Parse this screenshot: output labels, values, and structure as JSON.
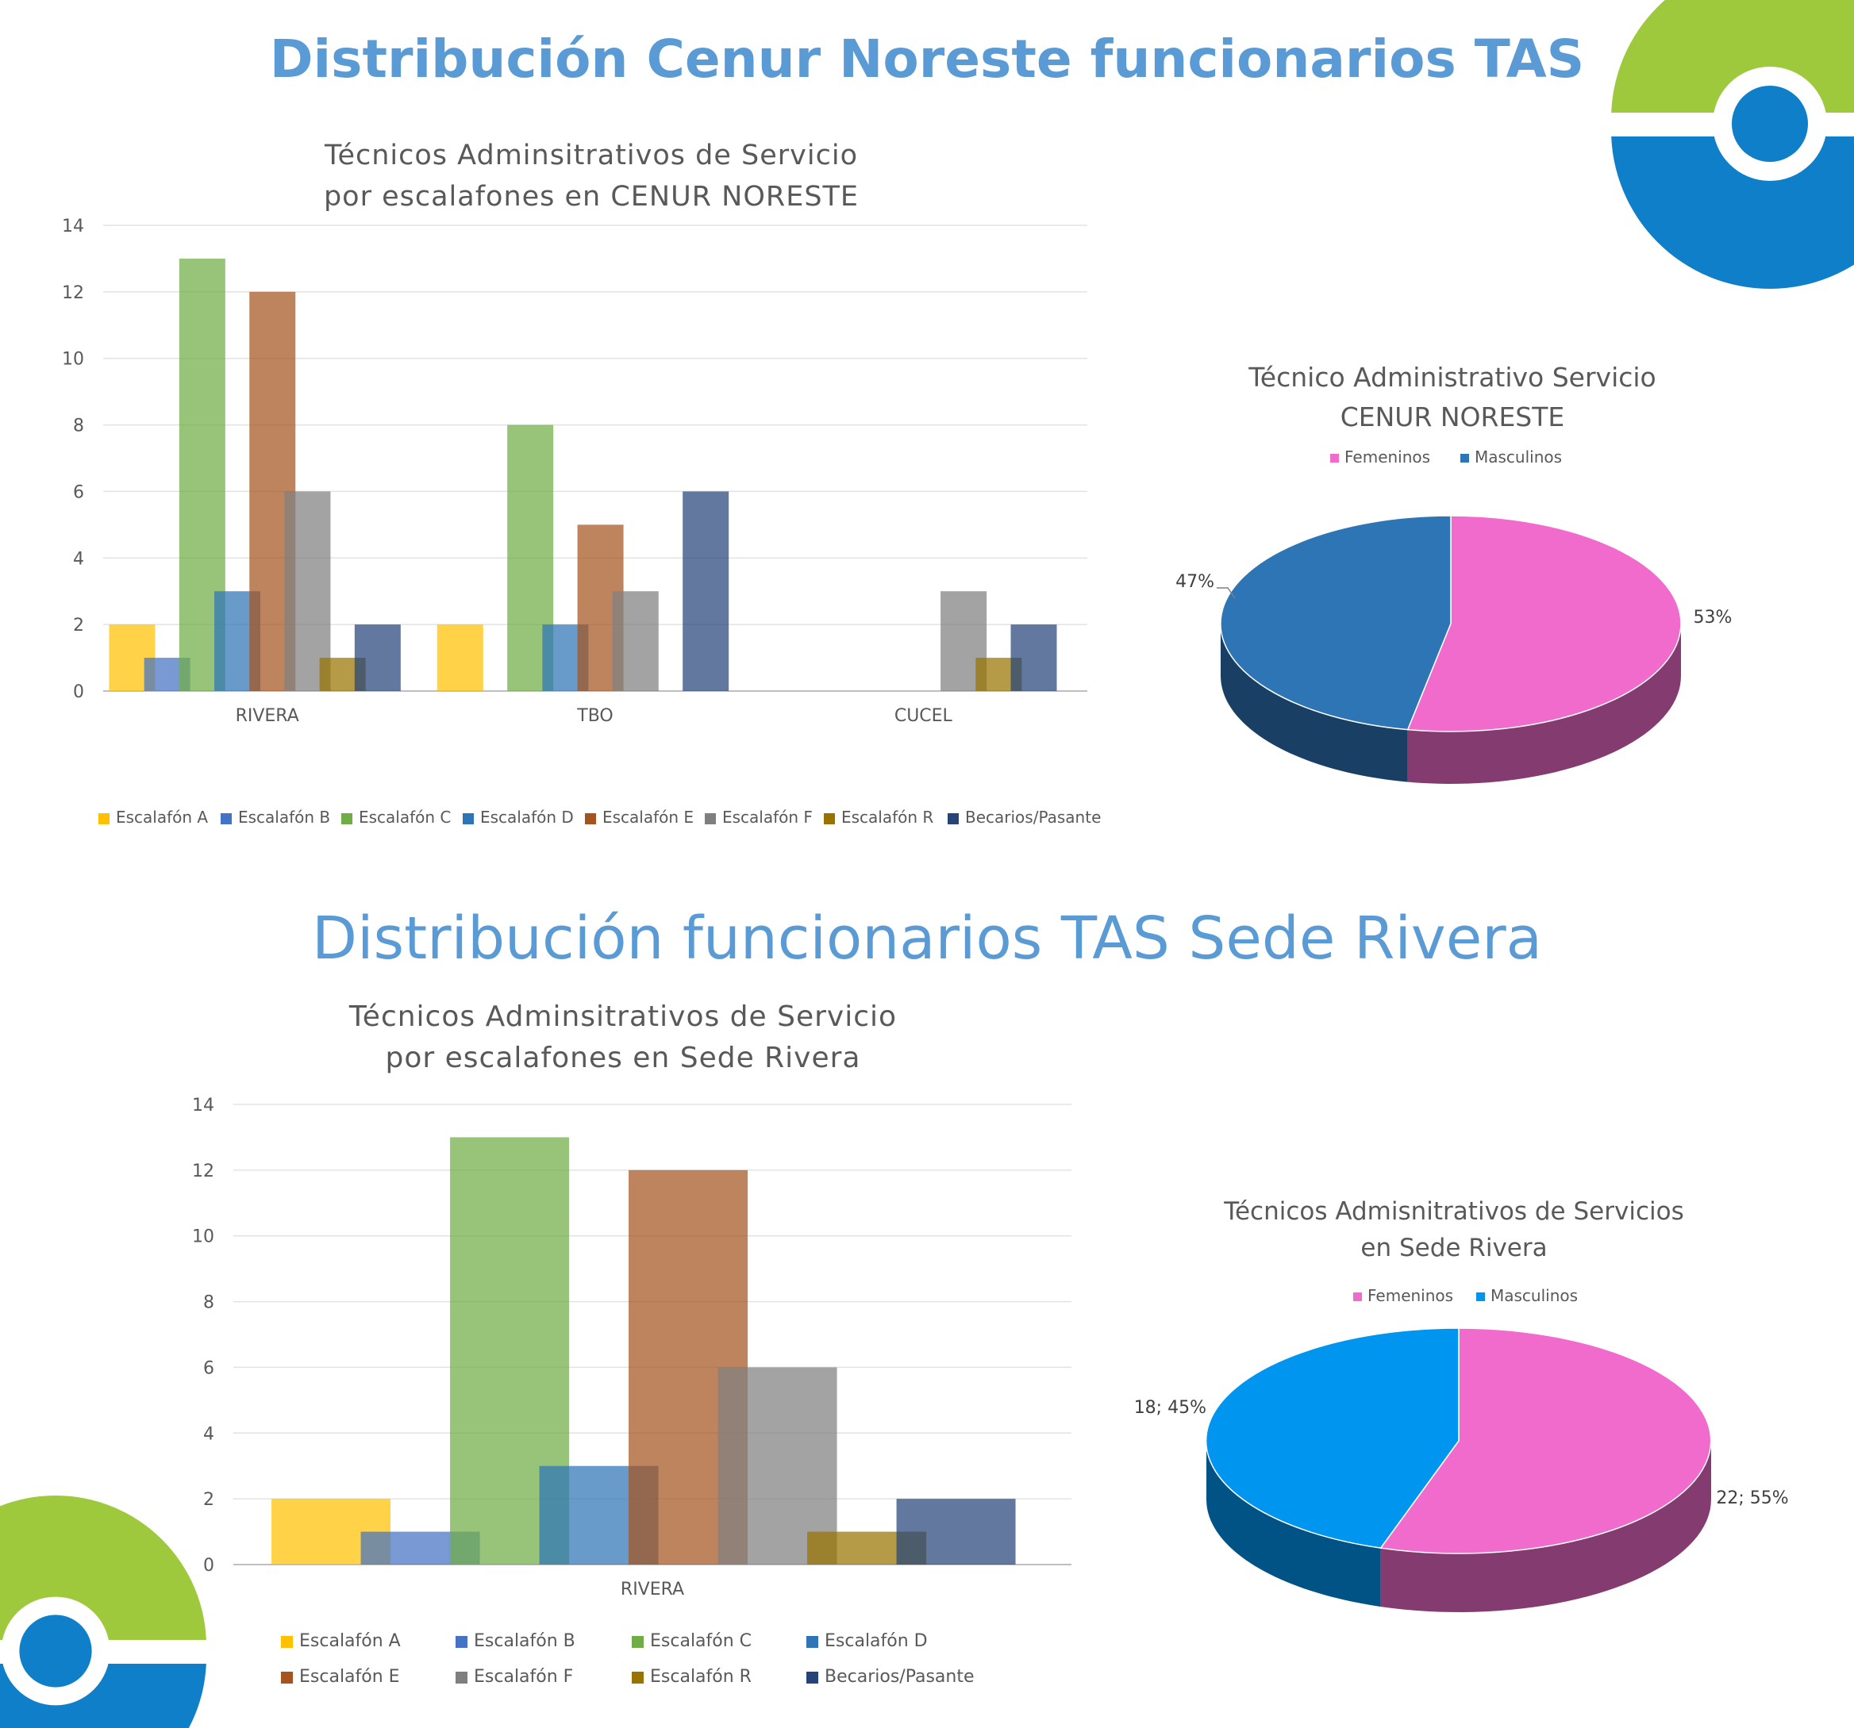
{
  "headings": {
    "top": "Distribución Cenur Noreste funcionarios TAS",
    "bottom": "Distribución funcionarios TAS Sede Rivera"
  },
  "colors": {
    "escalafon_a": "#ffc000",
    "escalafon_b": "#4472c4",
    "escalafon_c": "#70ad47",
    "escalafon_d": "#2e75b6",
    "escalafon_e": "#a5541f",
    "escalafon_f": "#7f7f7f",
    "escalafon_r": "#997300",
    "becarios": "#264478",
    "femeninos": "#f06bcb",
    "masculinos_1": "#2e75b6",
    "masculinos_2": "#0096f0",
    "logo_green": "#9fc93c",
    "logo_blue": "#0e7fc8"
  },
  "chart_data": [
    {
      "type": "bar",
      "title": "Técnicos Adminsitrativos de Servicio por escalafones en CENUR NORESTE",
      "title_lines": [
        "Técnicos Adminsitrativos de Servicio",
        "por escalafones en CENUR NORESTE"
      ],
      "categories": [
        "RIVERA",
        "TBO",
        "CUCEL"
      ],
      "ylim": [
        0,
        14
      ],
      "yticks": [
        "0",
        "2",
        "4",
        "6",
        "8",
        "10",
        "12",
        "14"
      ],
      "grid": true,
      "legend_position": "bottom",
      "series": [
        {
          "name": "Escalafón A",
          "values": [
            2,
            2,
            0
          ]
        },
        {
          "name": "Escalafón B",
          "values": [
            1,
            0,
            0
          ]
        },
        {
          "name": "Escalafón C",
          "values": [
            13,
            8,
            0
          ]
        },
        {
          "name": "Escalafón D",
          "values": [
            3,
            2,
            0
          ]
        },
        {
          "name": "Escalafón E",
          "values": [
            12,
            5,
            0
          ]
        },
        {
          "name": "Escalafón F",
          "values": [
            6,
            3,
            3
          ]
        },
        {
          "name": "Escalafón R",
          "values": [
            1,
            0,
            1
          ]
        },
        {
          "name": "Becarios/Pasante",
          "values": [
            2,
            6,
            2
          ]
        }
      ]
    },
    {
      "type": "pie",
      "title": "Técnico Administrativo Servicio CENUR NORESTE",
      "title_lines": [
        "Técnico Administrativo Servicio",
        "CENUR NORESTE"
      ],
      "legend_position": "top",
      "slices": [
        {
          "name": "Femeninos",
          "value": 53,
          "label": "53%"
        },
        {
          "name": "Masculinos",
          "value": 47,
          "label": "47%"
        }
      ]
    },
    {
      "type": "bar",
      "title": "Técnicos Adminsitrativos de Servicio por escalafones en Sede Rivera",
      "title_lines": [
        "Técnicos Adminsitrativos de Servicio",
        "por escalafones en Sede Rivera"
      ],
      "categories": [
        "RIVERA"
      ],
      "ylim": [
        0,
        14
      ],
      "yticks": [
        "0",
        "2",
        "4",
        "6",
        "8",
        "10",
        "12",
        "14"
      ],
      "grid": true,
      "legend_position": "bottom",
      "series": [
        {
          "name": "Escalafón A",
          "values": [
            2
          ]
        },
        {
          "name": "Escalafón B",
          "values": [
            1
          ]
        },
        {
          "name": "Escalafón C",
          "values": [
            13
          ]
        },
        {
          "name": "Escalafón D",
          "values": [
            3
          ]
        },
        {
          "name": "Escalafón E",
          "values": [
            12
          ]
        },
        {
          "name": "Escalafón F",
          "values": [
            6
          ]
        },
        {
          "name": "Escalafón R",
          "values": [
            1
          ]
        },
        {
          "name": "Becarios/Pasante",
          "values": [
            2
          ]
        }
      ]
    },
    {
      "type": "pie",
      "title": "Técnicos Admisnitrativos de Servicios en Sede Rivera",
      "title_lines": [
        "Técnicos Admisnitrativos de Servicios",
        "en Sede Rivera"
      ],
      "legend_position": "top",
      "slices": [
        {
          "name": "Femeninos",
          "value": 22,
          "label": "22; 55%"
        },
        {
          "name": "Masculinos",
          "value": 18,
          "label": "18; 45%"
        }
      ]
    }
  ]
}
